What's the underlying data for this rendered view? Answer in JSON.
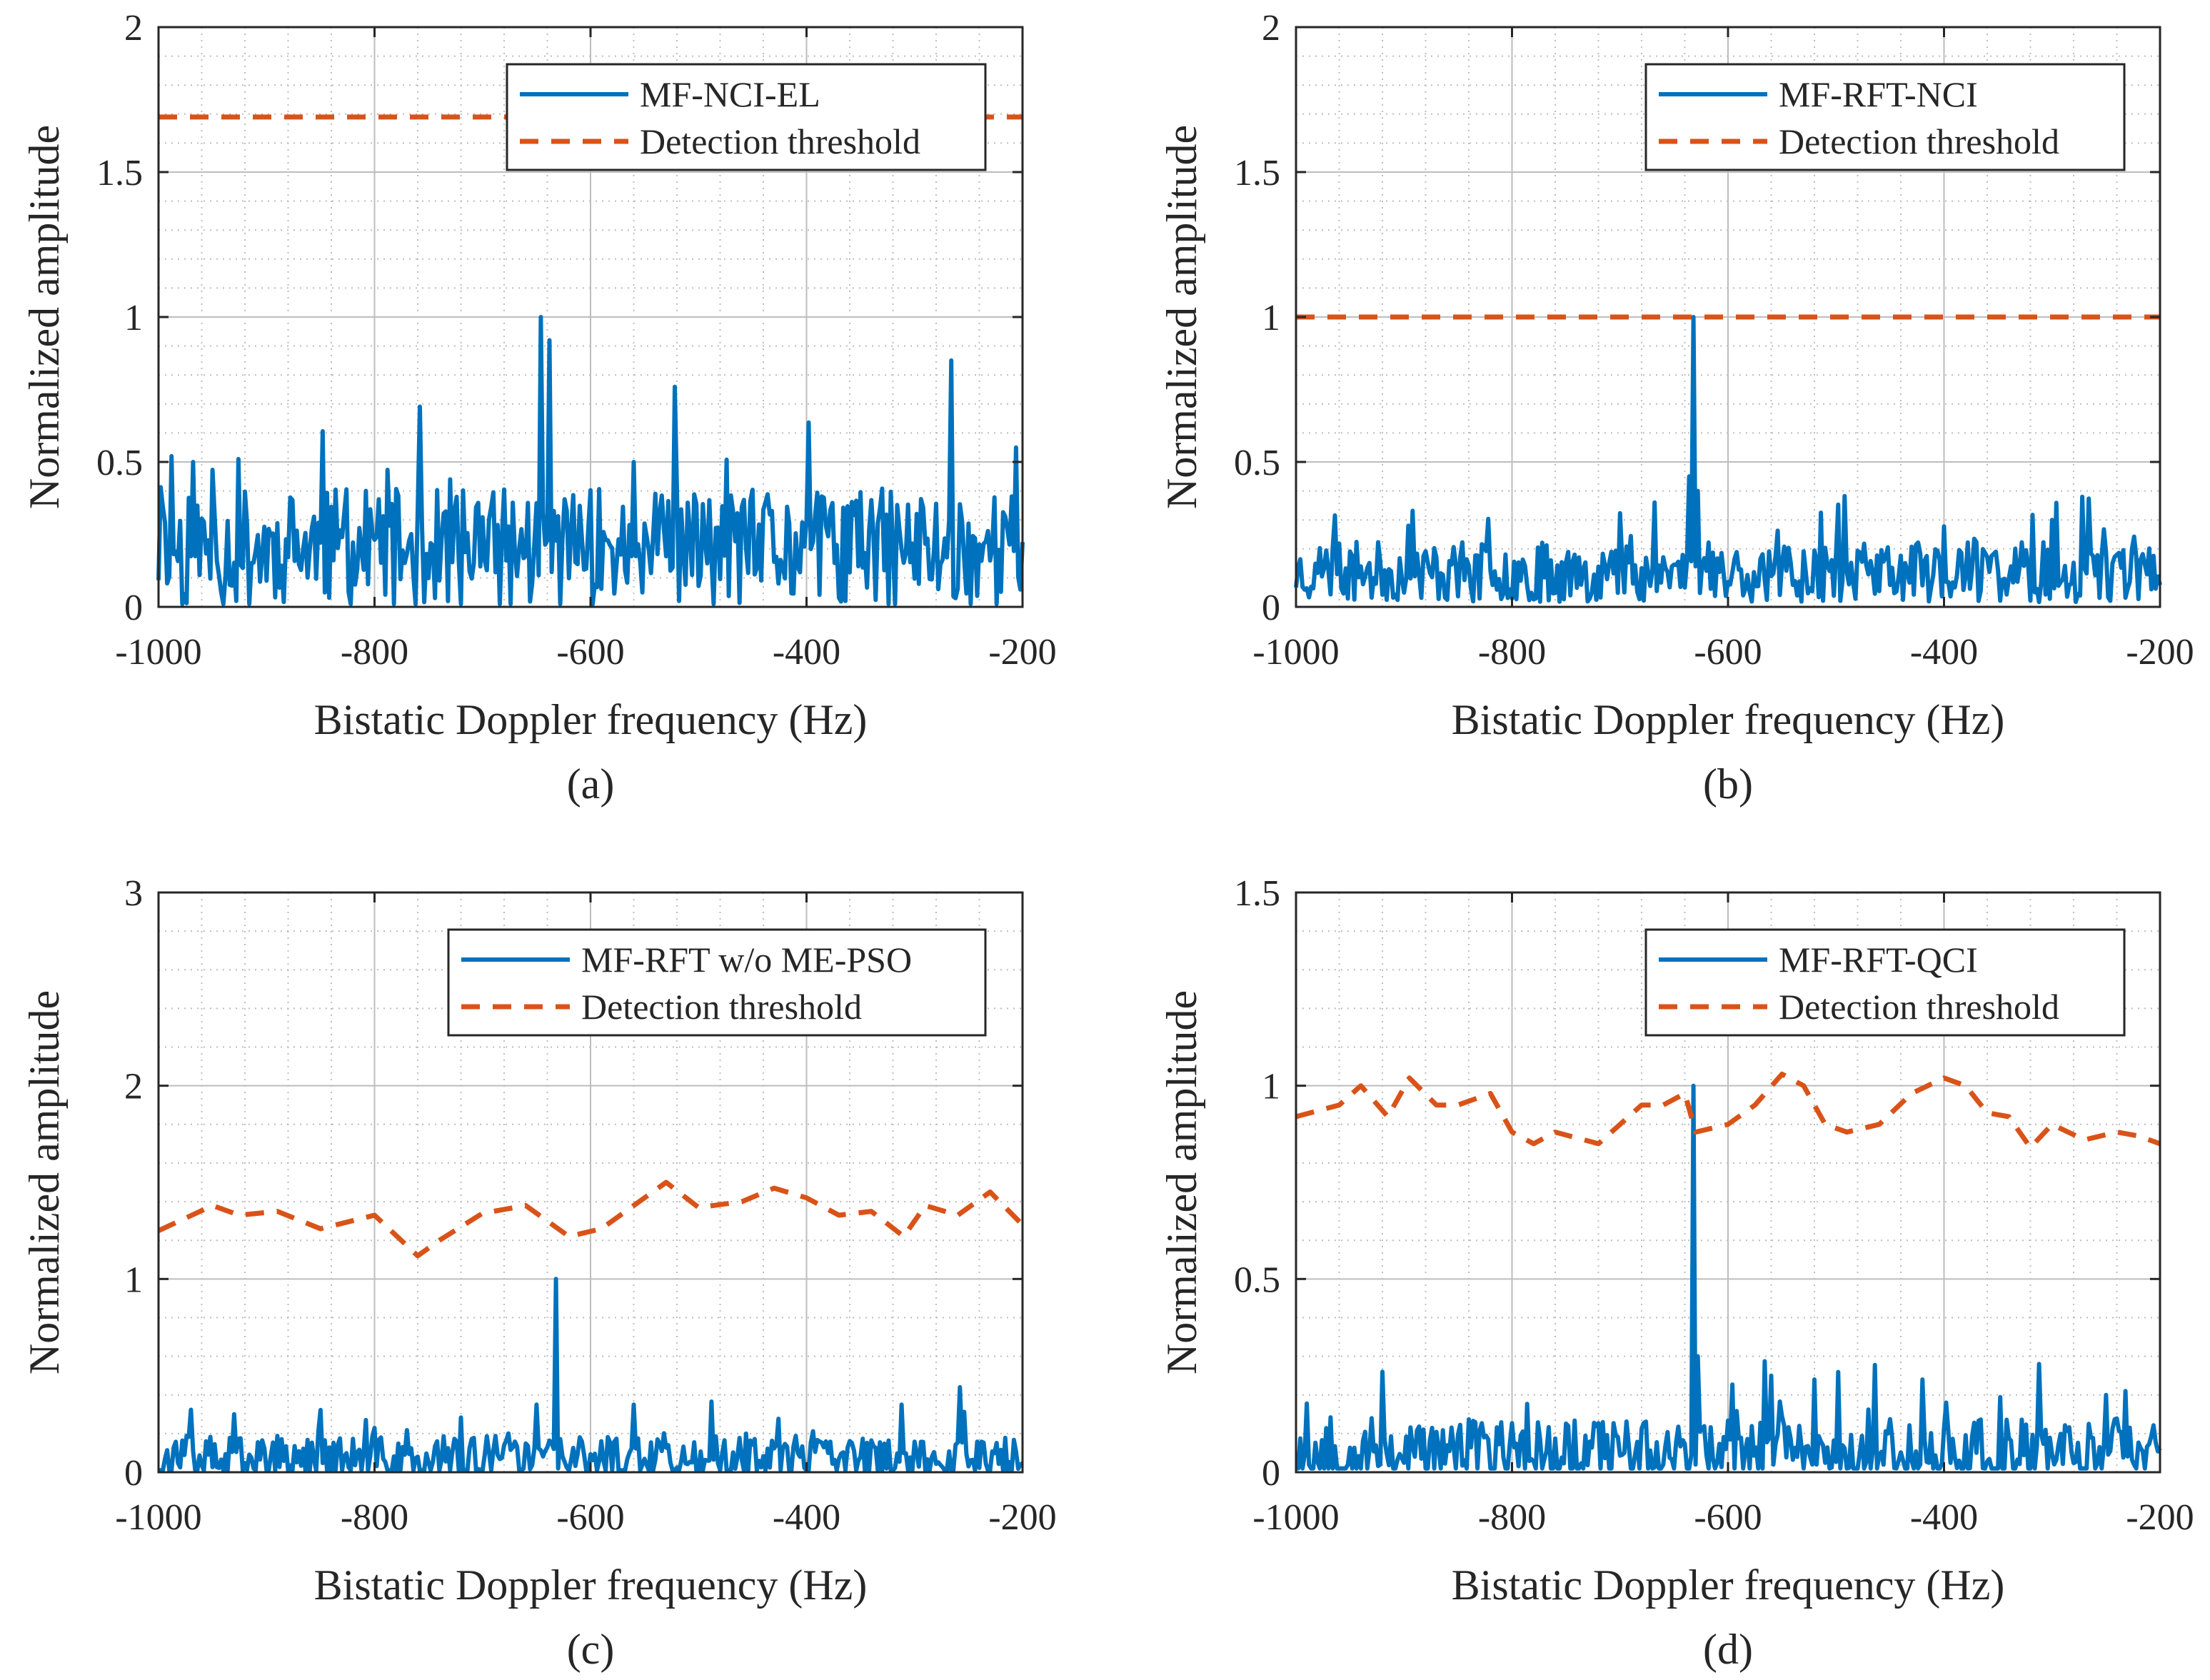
{
  "colors": {
    "signal": "#0072BD",
    "threshold": "#D95319",
    "axis": "#262626",
    "grid": "#bdbdbd"
  },
  "chart_data": [
    {
      "id": "a",
      "type": "line",
      "caption": "(a)",
      "xlabel": "Bistatic Doppler frequency (Hz)",
      "ylabel": "Normalized amplitude",
      "xlim": [
        -1000,
        -200
      ],
      "ylim": [
        0,
        2
      ],
      "xticks": [
        -1000,
        -800,
        -600,
        -400,
        -200
      ],
      "xtick_labels": [
        "-1000",
        "-800",
        "-600",
        "-400",
        "-200"
      ],
      "yticks": [
        0,
        0.5,
        1,
        1.5,
        2
      ],
      "ytick_labels": [
        "0",
        "0.5",
        "1",
        "1.5",
        "2"
      ],
      "grid": true,
      "legend_position": "top-right",
      "series": [
        {
          "name": "MF-NCI-EL",
          "style": "solid",
          "color": "#0072BD",
          "peaks": [
            [
              -645,
              1.0
            ],
            [
              -638,
              0.92
            ],
            [
              -265,
              0.85
            ],
            [
              -988,
              0.52
            ],
            [
              -967,
              0.5
            ],
            [
              -925,
              0.51
            ],
            [
              -730,
              0.44
            ],
            [
              -560,
              0.5
            ],
            [
              -205,
              0.55
            ]
          ],
          "noise": {
            "base": 0.2,
            "amp": 0.32,
            "seed": 11
          }
        },
        {
          "name": "Detection threshold",
          "style": "dashed",
          "color": "#D95319",
          "x": [
            -1000,
            -200
          ],
          "y": [
            1.69,
            1.69
          ]
        }
      ]
    },
    {
      "id": "b",
      "type": "line",
      "caption": "(b)",
      "xlabel": "Bistatic Doppler frequency (Hz)",
      "ylabel": "Normalized amplitude",
      "xlim": [
        -1000,
        -200
      ],
      "ylim": [
        0,
        2
      ],
      "xticks": [
        -1000,
        -800,
        -600,
        -400,
        -200
      ],
      "xtick_labels": [
        "-1000",
        "-800",
        "-600",
        "-400",
        "-200"
      ],
      "yticks": [
        0,
        0.5,
        1,
        1.5,
        2
      ],
      "ytick_labels": [
        "0",
        "0.5",
        "1",
        "1.5",
        "2"
      ],
      "grid": true,
      "legend_position": "top-right",
      "series": [
        {
          "name": "MF-RFT-NCI",
          "style": "solid",
          "color": "#0072BD",
          "peaks": [
            [
              -632,
              1.0
            ],
            [
              -636,
              0.45
            ],
            [
              -628,
              0.4
            ],
            [
              -300,
              0.3
            ],
            [
              -272,
              0.38
            ],
            [
              -895,
              0.28
            ]
          ],
          "noise": {
            "base": 0.12,
            "amp": 0.16,
            "seed": 23
          }
        },
        {
          "name": "Detection threshold",
          "style": "dashed",
          "color": "#D95319",
          "x": [
            -1000,
            -200
          ],
          "y": [
            1.0,
            1.0
          ]
        }
      ]
    },
    {
      "id": "c",
      "type": "line",
      "caption": "(c)",
      "xlabel": "Bistatic Doppler frequency (Hz)",
      "ylabel": "Normalized amplitude",
      "xlim": [
        -1000,
        -200
      ],
      "ylim": [
        0,
        3
      ],
      "xticks": [
        -1000,
        -800,
        -600,
        -400,
        -200
      ],
      "xtick_labels": [
        "-1000",
        "-800",
        "-600",
        "-400",
        "-200"
      ],
      "yticks": [
        0,
        1,
        2,
        3
      ],
      "ytick_labels": [
        "0",
        "1",
        "2",
        "3"
      ],
      "grid": true,
      "legend_position": "top-right",
      "series": [
        {
          "name": "MF-RFT w/o ME-PSO",
          "style": "solid",
          "color": "#0072BD",
          "peaks": [
            [
              -632,
              1.0
            ],
            [
              -650,
              0.35
            ],
            [
              -258,
              0.44
            ],
            [
              -930,
              0.3
            ],
            [
              -312,
              0.35
            ],
            [
              -560,
              0.35
            ]
          ],
          "noise": {
            "base": 0.06,
            "amp": 0.2,
            "seed": 37
          }
        },
        {
          "name": "Detection threshold",
          "style": "dashed",
          "color": "#D95319",
          "x": [
            -1000,
            -950,
            -925,
            -890,
            -850,
            -800,
            -760,
            -740,
            -700,
            -660,
            -640,
            -620,
            -590,
            -560,
            -530,
            -500,
            -460,
            -430,
            -400,
            -370,
            -340,
            -310,
            -290,
            -260,
            -230,
            -200
          ],
          "y": [
            1.25,
            1.38,
            1.33,
            1.35,
            1.26,
            1.33,
            1.12,
            1.2,
            1.34,
            1.38,
            1.3,
            1.22,
            1.26,
            1.38,
            1.5,
            1.37,
            1.4,
            1.47,
            1.42,
            1.33,
            1.35,
            1.22,
            1.38,
            1.33,
            1.45,
            1.28
          ]
        }
      ]
    },
    {
      "id": "d",
      "type": "line",
      "caption": "(d)",
      "xlabel": "Bistatic Doppler frequency (Hz)",
      "ylabel": "Normalized amplitude",
      "xlim": [
        -1000,
        -200
      ],
      "ylim": [
        0,
        1.5
      ],
      "xticks": [
        -1000,
        -800,
        -600,
        -400,
        -200
      ],
      "xtick_labels": [
        "-1000",
        "-800",
        "-600",
        "-400",
        "-200"
      ],
      "yticks": [
        0,
        0.5,
        1,
        1.5
      ],
      "ytick_labels": [
        "0",
        "0.5",
        "1",
        "1.5"
      ],
      "grid": true,
      "legend_position": "top-right",
      "series": [
        {
          "name": "MF-RFT-QCI",
          "style": "solid",
          "color": "#0072BD",
          "peaks": [
            [
              -632,
              1.0
            ],
            [
              -627,
              0.3
            ],
            [
              -920,
              0.26
            ],
            [
              -312,
              0.28
            ],
            [
              -560,
              0.25
            ],
            [
              -520,
              0.24
            ],
            [
              -420,
              0.24
            ],
            [
              -250,
              0.2
            ]
          ],
          "noise": {
            "base": 0.05,
            "amp": 0.14,
            "seed": 53
          }
        },
        {
          "name": "Detection threshold",
          "style": "dashed",
          "color": "#D95319",
          "x": [
            -1000,
            -960,
            -940,
            -915,
            -895,
            -870,
            -850,
            -820,
            -800,
            -780,
            -760,
            -720,
            -700,
            -680,
            -660,
            -640,
            -630,
            -600,
            -575,
            -550,
            -530,
            -510,
            -490,
            -460,
            -430,
            -400,
            -380,
            -360,
            -340,
            -320,
            -300,
            -270,
            -240,
            -220,
            -200
          ],
          "y": [
            0.92,
            0.95,
            1.0,
            0.92,
            1.02,
            0.95,
            0.95,
            0.98,
            0.88,
            0.85,
            0.88,
            0.85,
            0.9,
            0.95,
            0.95,
            0.98,
            0.88,
            0.9,
            0.95,
            1.03,
            1.0,
            0.9,
            0.88,
            0.9,
            0.98,
            1.02,
            1.0,
            0.93,
            0.92,
            0.84,
            0.9,
            0.86,
            0.88,
            0.87,
            0.85
          ]
        }
      ]
    }
  ]
}
